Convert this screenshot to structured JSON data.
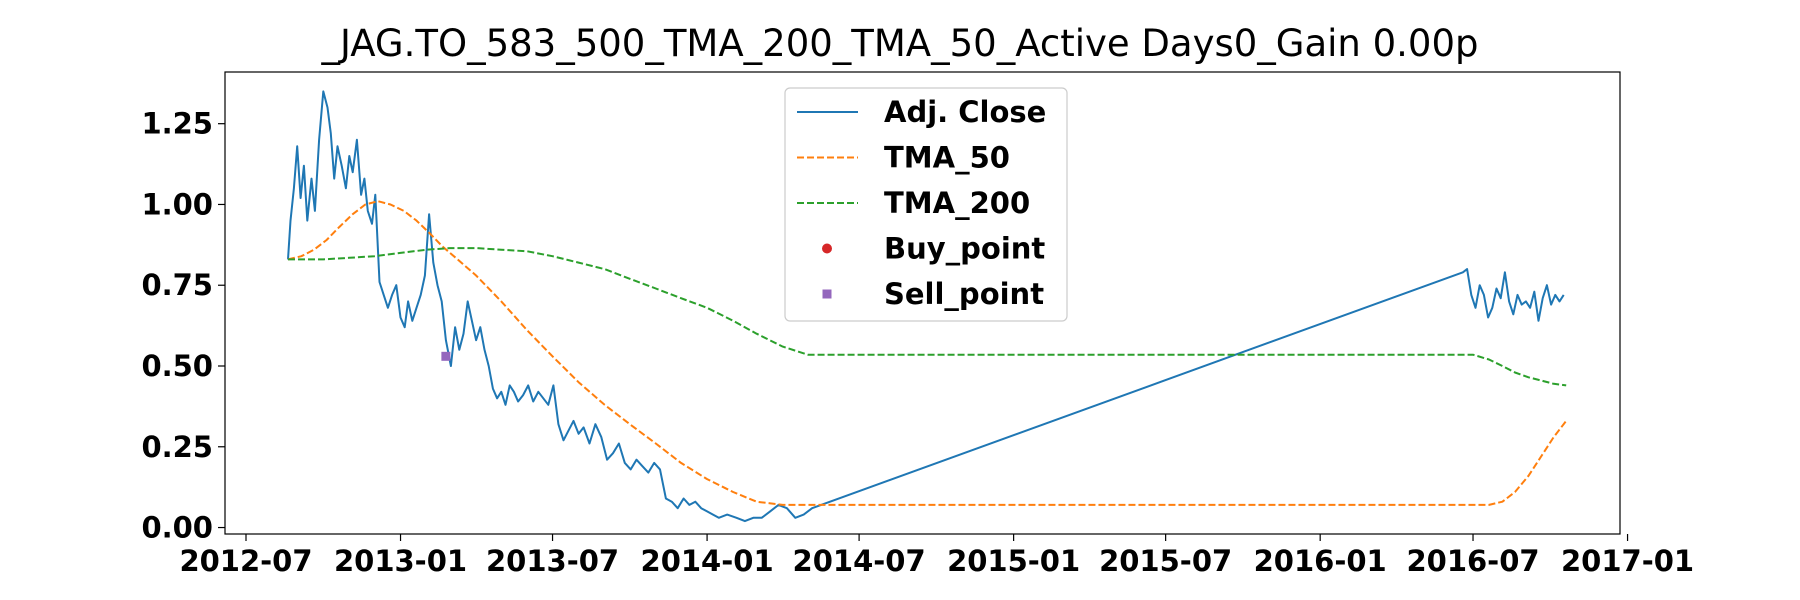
{
  "chart_data": {
    "type": "line",
    "title": "_JAG.TO_583_500_TMA_200_TMA_50_Active Days0_Gain   0.00p",
    "xlabel": "",
    "ylabel": "",
    "xlim": [
      "2012-06-06",
      "2016-12-23"
    ],
    "ylim": [
      -0.02,
      1.41
    ],
    "x_ticks": [
      "2012-07",
      "2013-01",
      "2013-07",
      "2014-01",
      "2014-07",
      "2015-01",
      "2015-07",
      "2016-01",
      "2016-07",
      "2017-01"
    ],
    "y_ticks": [
      "0.00",
      "0.25",
      "0.50",
      "0.75",
      "1.00",
      "1.25"
    ],
    "legend_position": "upper-center",
    "grid": false,
    "series": [
      {
        "name": "Adj. Close",
        "color": "#1f77b4",
        "style": "solid",
        "x": [
          "2012-08-20",
          "2012-08-23",
          "2012-08-27",
          "2012-08-31",
          "2012-09-04",
          "2012-09-08",
          "2012-09-12",
          "2012-09-17",
          "2012-09-21",
          "2012-09-26",
          "2012-10-01",
          "2012-10-06",
          "2012-10-10",
          "2012-10-14",
          "2012-10-18",
          "2012-10-23",
          "2012-10-28",
          "2012-11-01",
          "2012-11-05",
          "2012-11-10",
          "2012-11-15",
          "2012-11-19",
          "2012-11-23",
          "2012-11-28",
          "2012-12-02",
          "2012-12-07",
          "2012-12-12",
          "2012-12-17",
          "2012-12-22",
          "2012-12-27",
          "2013-01-01",
          "2013-01-06",
          "2013-01-10",
          "2013-01-15",
          "2013-01-20",
          "2013-01-25",
          "2013-01-30",
          "2013-02-04",
          "2013-02-09",
          "2013-02-14",
          "2013-02-19",
          "2013-02-24",
          "2013-03-02",
          "2013-03-07",
          "2013-03-12",
          "2013-03-17",
          "2013-03-22",
          "2013-03-27",
          "2013-04-01",
          "2013-04-06",
          "2013-04-11",
          "2013-04-16",
          "2013-04-21",
          "2013-04-26",
          "2013-05-01",
          "2013-05-06",
          "2013-05-11",
          "2013-05-16",
          "2013-05-21",
          "2013-05-27",
          "2013-06-02",
          "2013-06-08",
          "2013-06-14",
          "2013-06-20",
          "2013-06-26",
          "2013-07-02",
          "2013-07-08",
          "2013-07-14",
          "2013-07-20",
          "2013-07-26",
          "2013-08-01",
          "2013-08-07",
          "2013-08-14",
          "2013-08-21",
          "2013-08-28",
          "2013-09-04",
          "2013-09-11",
          "2013-09-18",
          "2013-09-25",
          "2013-10-02",
          "2013-10-09",
          "2013-10-16",
          "2013-10-23",
          "2013-10-30",
          "2013-11-06",
          "2013-11-13",
          "2013-11-20",
          "2013-11-27",
          "2013-12-04",
          "2013-12-11",
          "2013-12-18",
          "2013-12-25",
          "2014-01-01",
          "2014-01-08",
          "2014-01-15",
          "2014-01-25",
          "2014-02-05",
          "2014-02-15",
          "2014-02-25",
          "2014-03-07",
          "2014-03-17",
          "2014-03-27",
          "2014-04-06",
          "2014-04-16",
          "2014-04-26",
          "2014-05-06",
          "2016-06-19",
          "2016-06-24",
          "2016-06-29",
          "2016-07-04",
          "2016-07-09",
          "2016-07-14",
          "2016-07-19",
          "2016-07-24",
          "2016-07-29",
          "2016-08-03",
          "2016-08-08",
          "2016-08-13",
          "2016-08-18",
          "2016-08-23",
          "2016-08-28",
          "2016-09-02",
          "2016-09-07",
          "2016-09-12",
          "2016-09-17",
          "2016-09-22",
          "2016-09-27",
          "2016-10-02",
          "2016-10-07",
          "2016-10-12",
          "2016-10-17"
        ],
        "values": [
          0.83,
          0.95,
          1.05,
          1.18,
          1.02,
          1.12,
          0.95,
          1.08,
          0.98,
          1.2,
          1.35,
          1.3,
          1.22,
          1.08,
          1.18,
          1.12,
          1.05,
          1.15,
          1.1,
          1.2,
          1.03,
          1.08,
          0.98,
          0.94,
          1.03,
          0.76,
          0.72,
          0.68,
          0.72,
          0.75,
          0.65,
          0.62,
          0.7,
          0.64,
          0.68,
          0.72,
          0.78,
          0.97,
          0.82,
          0.75,
          0.7,
          0.58,
          0.5,
          0.62,
          0.55,
          0.6,
          0.7,
          0.64,
          0.58,
          0.62,
          0.55,
          0.5,
          0.43,
          0.4,
          0.42,
          0.38,
          0.44,
          0.42,
          0.39,
          0.41,
          0.44,
          0.39,
          0.42,
          0.4,
          0.38,
          0.44,
          0.32,
          0.27,
          0.3,
          0.33,
          0.29,
          0.31,
          0.26,
          0.32,
          0.28,
          0.21,
          0.23,
          0.26,
          0.2,
          0.18,
          0.21,
          0.19,
          0.17,
          0.2,
          0.18,
          0.09,
          0.08,
          0.06,
          0.09,
          0.07,
          0.08,
          0.06,
          0.05,
          0.04,
          0.03,
          0.04,
          0.03,
          0.02,
          0.03,
          0.03,
          0.05,
          0.07,
          0.06,
          0.03,
          0.04,
          0.06,
          0.79,
          0.8,
          0.72,
          0.68,
          0.75,
          0.72,
          0.65,
          0.68,
          0.74,
          0.71,
          0.79,
          0.7,
          0.66,
          0.72,
          0.69,
          0.7,
          0.68,
          0.73,
          0.64,
          0.71,
          0.75,
          0.69,
          0.72,
          0.7,
          0.72
        ]
      },
      {
        "name": "TMA_50",
        "color": "#ff7f0e",
        "style": "dashed",
        "x": [
          "2012-08-20",
          "2012-09-05",
          "2012-09-20",
          "2012-10-05",
          "2012-10-20",
          "2012-11-05",
          "2012-11-20",
          "2012-12-05",
          "2012-12-20",
          "2013-01-05",
          "2013-01-20",
          "2013-02-05",
          "2013-02-20",
          "2013-03-10",
          "2013-04-01",
          "2013-05-01",
          "2013-06-01",
          "2013-07-01",
          "2013-08-01",
          "2013-09-01",
          "2013-10-01",
          "2013-11-01",
          "2013-12-01",
          "2014-01-01",
          "2014-02-01",
          "2014-03-01",
          "2014-04-01",
          "2014-05-01",
          "2014-06-01",
          "2016-07-01",
          "2016-07-20",
          "2016-08-05",
          "2016-08-20",
          "2016-09-05",
          "2016-09-20",
          "2016-10-05",
          "2016-10-20"
        ],
        "values": [
          0.83,
          0.84,
          0.86,
          0.89,
          0.93,
          0.97,
          1.0,
          1.01,
          1.0,
          0.98,
          0.95,
          0.91,
          0.87,
          0.83,
          0.78,
          0.7,
          0.61,
          0.53,
          0.45,
          0.38,
          0.32,
          0.26,
          0.2,
          0.15,
          0.11,
          0.08,
          0.07,
          0.07,
          0.07,
          0.07,
          0.07,
          0.08,
          0.11,
          0.16,
          0.22,
          0.28,
          0.33
        ]
      },
      {
        "name": "TMA_200",
        "color": "#2ca02c",
        "style": "dashed",
        "x": [
          "2012-08-20",
          "2012-10-01",
          "2012-11-01",
          "2012-12-01",
          "2013-01-01",
          "2013-02-01",
          "2013-03-01",
          "2013-04-01",
          "2013-05-01",
          "2013-06-01",
          "2013-07-01",
          "2013-08-01",
          "2013-09-01",
          "2013-10-01",
          "2013-11-01",
          "2013-12-01",
          "2014-01-01",
          "2014-02-01",
          "2014-03-01",
          "2014-04-01",
          "2014-05-01",
          "2014-06-01",
          "2016-07-01",
          "2016-07-20",
          "2016-08-05",
          "2016-08-20",
          "2016-09-05",
          "2016-09-20",
          "2016-10-05",
          "2016-10-20"
        ],
        "values": [
          0.83,
          0.83,
          0.835,
          0.84,
          0.85,
          0.86,
          0.865,
          0.865,
          0.86,
          0.855,
          0.84,
          0.82,
          0.8,
          0.77,
          0.74,
          0.71,
          0.68,
          0.64,
          0.6,
          0.56,
          0.535,
          0.535,
          0.535,
          0.52,
          0.5,
          0.48,
          0.465,
          0.455,
          0.445,
          0.44
        ]
      },
      {
        "name": "Buy_point",
        "color": "#d62728",
        "style": "marker-circle",
        "x": [],
        "values": []
      },
      {
        "name": "Sell_point",
        "color": "#9467bd",
        "style": "marker-square",
        "x": [
          "2013-02-24"
        ],
        "values": [
          0.53
        ]
      }
    ]
  }
}
